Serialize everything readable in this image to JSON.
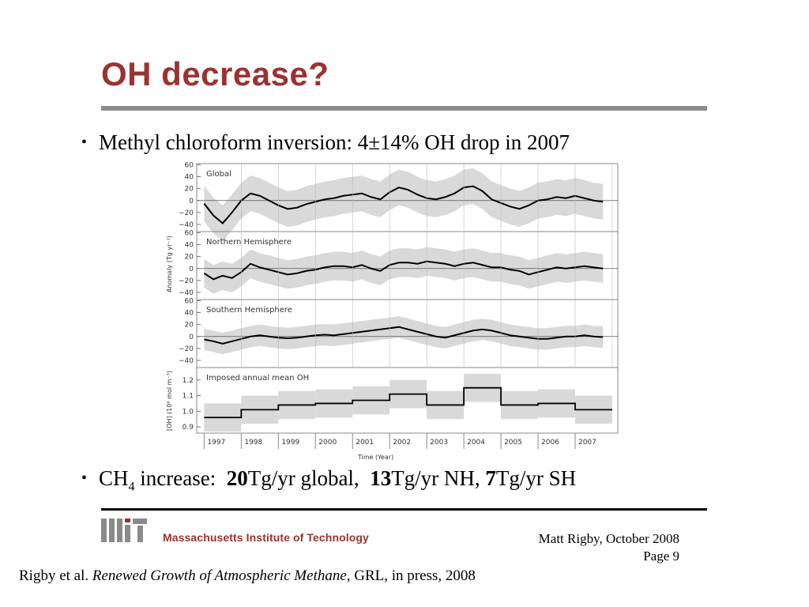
{
  "slide": {
    "title": "OH decrease?",
    "bullet1": "Methyl chloroform inversion: 4±14% OH drop in 2007",
    "bullet2": {
      "ch": "CH",
      "sub": "4",
      "increase": " increase:  ",
      "v1": "20",
      "t1": "Tg/yr global,  ",
      "v2": "13",
      "t2": "Tg/yr NH, ",
      "v3": "7",
      "t3": "Tg/yr SH"
    },
    "institution": "Massachusetts Institute of Technology",
    "author": "Matt Rigby, October 2008",
    "page": "Page 9",
    "citation": {
      "pre": "Rigby et al. ",
      "journal_title": "Renewed Growth of Atmospheric Methane",
      "post": ", GRL, in press, 2008"
    }
  },
  "colors": {
    "title": "#9b3232",
    "band": "#d9d9d9",
    "line": "#000000"
  },
  "chart_data": [
    {
      "type": "line",
      "title": "Global",
      "ylabel": "Anomaly (Tg yr⁻¹)",
      "yticks": [
        60,
        40,
        20,
        0,
        -20,
        -40
      ],
      "ylim": [
        -52,
        62
      ],
      "x": [
        1997.0,
        1997.25,
        1997.5,
        1997.75,
        1998.0,
        1998.25,
        1998.5,
        1998.75,
        1999.0,
        1999.25,
        1999.5,
        1999.75,
        2000.0,
        2000.25,
        2000.5,
        2000.75,
        2001.0,
        2001.25,
        2001.5,
        2001.75,
        2002.0,
        2002.25,
        2002.5,
        2002.75,
        2003.0,
        2003.25,
        2003.5,
        2003.75,
        2004.0,
        2004.25,
        2004.5,
        2004.75,
        2005.0,
        2005.25,
        2005.5,
        2005.75,
        2006.0,
        2006.25,
        2006.5,
        2006.75,
        2007.0,
        2007.25,
        2007.5,
        2007.75
      ],
      "values": [
        -5,
        -25,
        -38,
        -20,
        0,
        12,
        8,
        0,
        -8,
        -14,
        -12,
        -6,
        -2,
        2,
        4,
        8,
        10,
        12,
        6,
        2,
        14,
        22,
        18,
        10,
        4,
        2,
        6,
        12,
        22,
        24,
        16,
        2,
        -4,
        -10,
        -14,
        -8,
        0,
        2,
        6,
        4,
        8,
        4,
        0,
        -2
      ],
      "band_halfwidth": 30
    },
    {
      "type": "line",
      "title": "Northern Hemisphere",
      "yticks": [
        60,
        40,
        20,
        0,
        -20,
        -40
      ],
      "ylim": [
        -52,
        62
      ],
      "x": [
        1997.0,
        1997.25,
        1997.5,
        1997.75,
        1998.0,
        1998.25,
        1998.5,
        1998.75,
        1999.0,
        1999.25,
        1999.5,
        1999.75,
        2000.0,
        2000.25,
        2000.5,
        2000.75,
        2001.0,
        2001.25,
        2001.5,
        2001.75,
        2002.0,
        2002.25,
        2002.5,
        2002.75,
        2003.0,
        2003.25,
        2003.5,
        2003.75,
        2004.0,
        2004.25,
        2004.5,
        2004.75,
        2005.0,
        2005.25,
        2005.5,
        2005.75,
        2006.0,
        2006.25,
        2006.5,
        2006.75,
        2007.0,
        2007.25,
        2007.5,
        2007.75
      ],
      "values": [
        -8,
        -18,
        -12,
        -16,
        -6,
        8,
        2,
        -2,
        -6,
        -10,
        -8,
        -4,
        -2,
        2,
        4,
        4,
        2,
        6,
        0,
        -4,
        6,
        10,
        10,
        8,
        12,
        10,
        8,
        4,
        8,
        10,
        6,
        2,
        2,
        -2,
        -4,
        -10,
        -6,
        -2,
        2,
        0,
        2,
        4,
        2,
        0
      ],
      "band_halfwidth": 24
    },
    {
      "type": "line",
      "title": "Southern Hemisphere",
      "yticks": [
        60,
        40,
        20,
        0,
        -20,
        -40
      ],
      "ylim": [
        -52,
        62
      ],
      "x": [
        1997.0,
        1997.25,
        1997.5,
        1997.75,
        1998.0,
        1998.25,
        1998.5,
        1998.75,
        1999.0,
        1999.25,
        1999.5,
        1999.75,
        2000.0,
        2000.25,
        2000.5,
        2000.75,
        2001.0,
        2001.25,
        2001.5,
        2001.75,
        2002.0,
        2002.25,
        2002.5,
        2002.75,
        2003.0,
        2003.25,
        2003.5,
        2003.75,
        2004.0,
        2004.25,
        2004.5,
        2004.75,
        2005.0,
        2005.25,
        2005.5,
        2005.75,
        2006.0,
        2006.25,
        2006.5,
        2006.75,
        2007.0,
        2007.25,
        2007.5,
        2007.75
      ],
      "values": [
        -5,
        -8,
        -12,
        -8,
        -4,
        0,
        2,
        0,
        -2,
        -3,
        -2,
        0,
        2,
        3,
        2,
        4,
        6,
        8,
        10,
        12,
        14,
        16,
        12,
        8,
        4,
        0,
        -2,
        2,
        6,
        10,
        12,
        10,
        6,
        2,
        0,
        -2,
        -4,
        -4,
        -2,
        0,
        0,
        2,
        0,
        -1
      ],
      "band_halfwidth": 18
    },
    {
      "type": "step",
      "title": "Imposed annual mean OH",
      "ylabel": "[OH] (10⁶ mol m⁻³)",
      "xlabel": "Time (Year)",
      "yticks": [
        1.2,
        1.1,
        1.0,
        0.9
      ],
      "ylim": [
        0.86,
        1.28
      ],
      "categories": [
        "1997",
        "1998",
        "1999",
        "2000",
        "2001",
        "2002",
        "2003",
        "2004",
        "2005",
        "2006",
        "2007"
      ],
      "values": [
        0.96,
        1.01,
        1.04,
        1.05,
        1.07,
        1.11,
        1.04,
        1.15,
        1.04,
        1.05,
        1.01
      ],
      "band_halfwidth": 0.09
    }
  ]
}
